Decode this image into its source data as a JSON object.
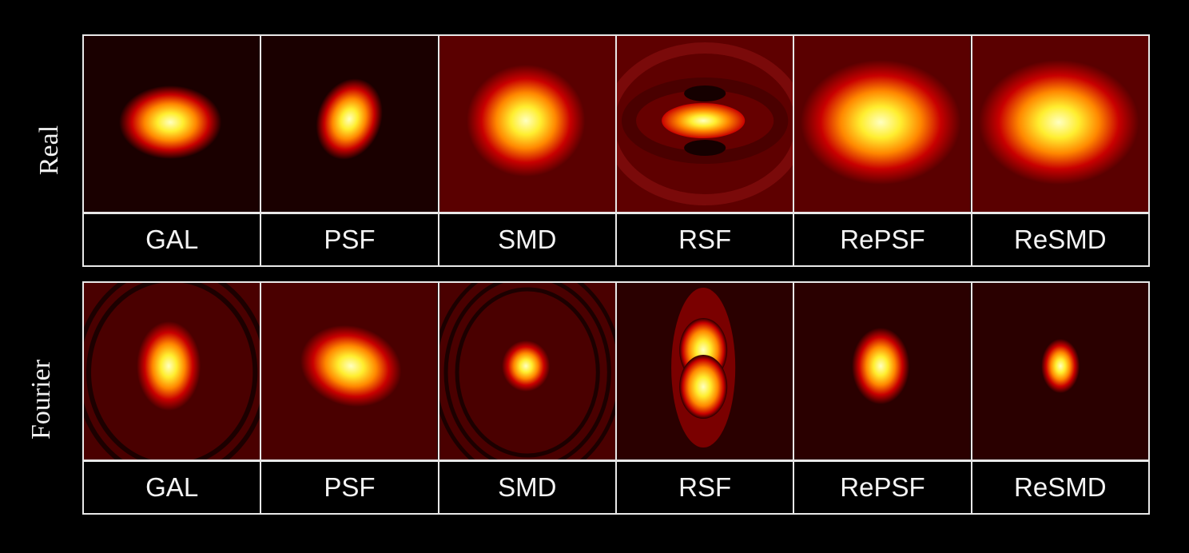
{
  "row_labels": {
    "real": "Real",
    "fourier": "Fourier"
  },
  "real_panel": {
    "labels": [
      "GAL",
      "PSF",
      "SMD",
      "RSF",
      "RePSF",
      "ReSMD"
    ],
    "blobs": [
      {
        "bg": "#1a0000",
        "rings": [],
        "shape": "gal"
      },
      {
        "bg": "#1a0000",
        "shape": "psf"
      },
      {
        "bg": "#5a0000",
        "shape": "smd"
      },
      {
        "bg": "#3a0000",
        "shape": "rsf"
      },
      {
        "bg": "#5a0000",
        "shape": "repsf"
      },
      {
        "bg": "#5a0000",
        "shape": "resmd"
      }
    ]
  },
  "fourier_panel": {
    "labels": [
      "GAL",
      "PSF",
      "SMD",
      "RSF",
      "RePSF",
      "ReSMD"
    ],
    "blobs": [
      {
        "bg": "#4a0000",
        "shape": "fgal"
      },
      {
        "bg": "#4a0000",
        "shape": "fpsf"
      },
      {
        "bg": "#4a0000",
        "shape": "fsmd"
      },
      {
        "bg": "#2a0000",
        "shape": "frsf"
      },
      {
        "bg": "#2a0000",
        "shape": "frepsf"
      },
      {
        "bg": "#2a0000",
        "shape": "fresmd"
      }
    ]
  },
  "colors": {
    "border": "#e8e8e8",
    "text": "#f4f4f4",
    "page_bg": "#000000"
  }
}
